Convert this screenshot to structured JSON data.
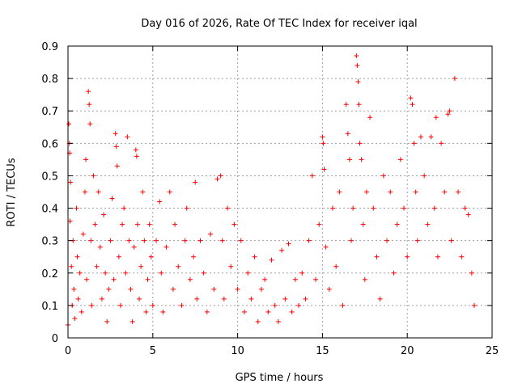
{
  "chart_data": {
    "type": "scatter",
    "title": "Day 016 of 2026, Rate Of TEC Index for receiver iqal",
    "xlabel": "GPS time / hours",
    "ylabel": "ROTI / TECUs",
    "xlim": [
      0,
      25
    ],
    "ylim": [
      0,
      0.9
    ],
    "xticks": [
      "0",
      "5",
      "10",
      "15",
      "20",
      "25"
    ],
    "yticks": [
      "0",
      "0.1",
      "0.2",
      "0.3",
      "0.4",
      "0.5",
      "0.6",
      "0.7",
      "0.8",
      "0.9"
    ],
    "grid": true,
    "marker": "+",
    "color": "#ff0000",
    "series": [
      {
        "name": "ROTI",
        "points": [
          [
            0.0,
            0.04
          ],
          [
            0.05,
            0.66
          ],
          [
            0.08,
            0.6
          ],
          [
            0.1,
            0.57
          ],
          [
            0.12,
            0.36
          ],
          [
            0.15,
            0.48
          ],
          [
            0.2,
            0.22
          ],
          [
            0.25,
            0.1
          ],
          [
            0.3,
            0.3
          ],
          [
            0.35,
            0.15
          ],
          [
            0.4,
            0.06
          ],
          [
            0.5,
            0.4
          ],
          [
            0.55,
            0.25
          ],
          [
            0.6,
            0.12
          ],
          [
            0.7,
            0.2
          ],
          [
            0.8,
            0.08
          ],
          [
            0.9,
            0.32
          ],
          [
            1.0,
            0.45
          ],
          [
            1.05,
            0.55
          ],
          [
            1.1,
            0.18
          ],
          [
            1.2,
            0.76
          ],
          [
            1.25,
            0.72
          ],
          [
            1.3,
            0.66
          ],
          [
            1.35,
            0.3
          ],
          [
            1.4,
            0.1
          ],
          [
            1.5,
            0.5
          ],
          [
            1.6,
            0.35
          ],
          [
            1.7,
            0.22
          ],
          [
            1.8,
            0.45
          ],
          [
            1.9,
            0.28
          ],
          [
            2.0,
            0.12
          ],
          [
            2.1,
            0.38
          ],
          [
            2.2,
            0.2
          ],
          [
            2.3,
            0.05
          ],
          [
            2.4,
            0.15
          ],
          [
            2.5,
            0.3
          ],
          [
            2.6,
            0.43
          ],
          [
            2.7,
            0.18
          ],
          [
            2.8,
            0.63
          ],
          [
            2.85,
            0.59
          ],
          [
            2.9,
            0.53
          ],
          [
            3.0,
            0.25
          ],
          [
            3.1,
            0.1
          ],
          [
            3.2,
            0.35
          ],
          [
            3.3,
            0.4
          ],
          [
            3.4,
            0.2
          ],
          [
            3.5,
            0.62
          ],
          [
            3.6,
            0.3
          ],
          [
            3.7,
            0.15
          ],
          [
            3.8,
            0.05
          ],
          [
            3.9,
            0.28
          ],
          [
            4.0,
            0.58
          ],
          [
            4.05,
            0.56
          ],
          [
            4.1,
            0.35
          ],
          [
            4.2,
            0.12
          ],
          [
            4.3,
            0.22
          ],
          [
            4.4,
            0.45
          ],
          [
            4.5,
            0.3
          ],
          [
            4.6,
            0.08
          ],
          [
            4.7,
            0.18
          ],
          [
            4.8,
            0.35
          ],
          [
            4.9,
            0.25
          ],
          [
            5.0,
            0.1
          ],
          [
            5.2,
            0.3
          ],
          [
            5.4,
            0.42
          ],
          [
            5.5,
            0.2
          ],
          [
            5.6,
            0.08
          ],
          [
            5.8,
            0.28
          ],
          [
            6.0,
            0.45
          ],
          [
            6.2,
            0.15
          ],
          [
            6.3,
            0.35
          ],
          [
            6.5,
            0.22
          ],
          [
            6.7,
            0.1
          ],
          [
            6.9,
            0.3
          ],
          [
            7.0,
            0.4
          ],
          [
            7.2,
            0.18
          ],
          [
            7.4,
            0.25
          ],
          [
            7.5,
            0.48
          ],
          [
            7.6,
            0.12
          ],
          [
            7.8,
            0.3
          ],
          [
            8.0,
            0.2
          ],
          [
            8.2,
            0.08
          ],
          [
            8.4,
            0.32
          ],
          [
            8.6,
            0.15
          ],
          [
            8.8,
            0.49
          ],
          [
            9.0,
            0.5
          ],
          [
            9.1,
            0.3
          ],
          [
            9.2,
            0.12
          ],
          [
            9.4,
            0.4
          ],
          [
            9.6,
            0.22
          ],
          [
            9.8,
            0.35
          ],
          [
            10.0,
            0.15
          ],
          [
            10.2,
            0.3
          ],
          [
            10.4,
            0.08
          ],
          [
            10.6,
            0.2
          ],
          [
            10.8,
            0.12
          ],
          [
            11.0,
            0.25
          ],
          [
            11.2,
            0.05
          ],
          [
            11.4,
            0.15
          ],
          [
            11.6,
            0.18
          ],
          [
            11.8,
            0.08
          ],
          [
            12.0,
            0.24
          ],
          [
            12.2,
            0.1
          ],
          [
            12.4,
            0.05
          ],
          [
            12.6,
            0.27
          ],
          [
            12.8,
            0.12
          ],
          [
            13.0,
            0.29
          ],
          [
            13.2,
            0.08
          ],
          [
            13.4,
            0.18
          ],
          [
            13.6,
            0.1
          ],
          [
            13.8,
            0.2
          ],
          [
            14.0,
            0.12
          ],
          [
            14.2,
            0.3
          ],
          [
            14.4,
            0.5
          ],
          [
            14.6,
            0.18
          ],
          [
            14.8,
            0.35
          ],
          [
            15.0,
            0.62
          ],
          [
            15.05,
            0.6
          ],
          [
            15.1,
            0.52
          ],
          [
            15.2,
            0.28
          ],
          [
            15.4,
            0.15
          ],
          [
            15.6,
            0.4
          ],
          [
            15.8,
            0.22
          ],
          [
            16.0,
            0.45
          ],
          [
            16.2,
            0.1
          ],
          [
            16.4,
            0.72
          ],
          [
            16.5,
            0.63
          ],
          [
            16.6,
            0.55
          ],
          [
            16.7,
            0.3
          ],
          [
            16.8,
            0.4
          ],
          [
            17.0,
            0.87
          ],
          [
            17.05,
            0.84
          ],
          [
            17.1,
            0.79
          ],
          [
            17.15,
            0.72
          ],
          [
            17.2,
            0.6
          ],
          [
            17.3,
            0.55
          ],
          [
            17.4,
            0.35
          ],
          [
            17.5,
            0.18
          ],
          [
            17.6,
            0.45
          ],
          [
            17.8,
            0.68
          ],
          [
            18.0,
            0.4
          ],
          [
            18.2,
            0.25
          ],
          [
            18.4,
            0.12
          ],
          [
            18.6,
            0.5
          ],
          [
            18.8,
            0.3
          ],
          [
            19.0,
            0.45
          ],
          [
            19.2,
            0.2
          ],
          [
            19.4,
            0.35
          ],
          [
            19.6,
            0.55
          ],
          [
            19.8,
            0.4
          ],
          [
            20.0,
            0.25
          ],
          [
            20.2,
            0.74
          ],
          [
            20.3,
            0.72
          ],
          [
            20.4,
            0.6
          ],
          [
            20.5,
            0.45
          ],
          [
            20.6,
            0.3
          ],
          [
            20.8,
            0.62
          ],
          [
            21.0,
            0.5
          ],
          [
            21.2,
            0.35
          ],
          [
            21.4,
            0.62
          ],
          [
            21.6,
            0.4
          ],
          [
            21.7,
            0.68
          ],
          [
            21.8,
            0.25
          ],
          [
            22.0,
            0.6
          ],
          [
            22.2,
            0.45
          ],
          [
            22.4,
            0.69
          ],
          [
            22.5,
            0.7
          ],
          [
            22.6,
            0.3
          ],
          [
            22.8,
            0.8
          ],
          [
            23.0,
            0.45
          ],
          [
            23.2,
            0.25
          ],
          [
            23.4,
            0.4
          ],
          [
            23.6,
            0.38
          ],
          [
            23.8,
            0.2
          ],
          [
            23.95,
            0.1
          ]
        ]
      }
    ]
  }
}
